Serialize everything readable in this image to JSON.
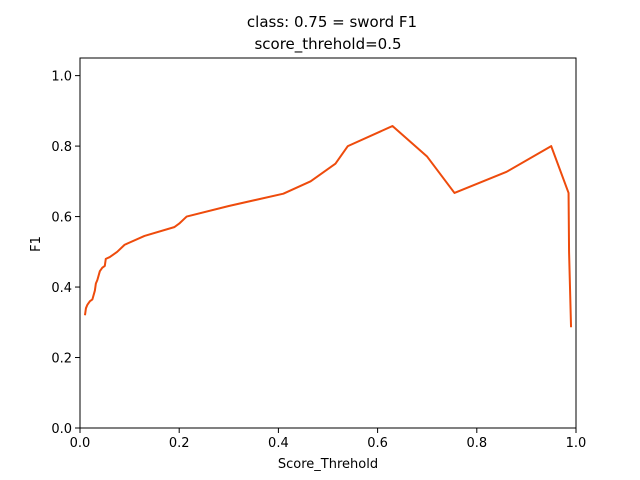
{
  "chart_data": {
    "type": "line",
    "title": "class: 0.75 = sword F1",
    "subtitle": "score_threhold=0.5",
    "xlabel": "Score_Threhold",
    "ylabel": "F1",
    "xlim": [
      0.0,
      1.0
    ],
    "ylim": [
      0.0,
      1.05
    ],
    "xticks": [
      0.0,
      0.2,
      0.4,
      0.6,
      0.8,
      1.0
    ],
    "xtick_labels": [
      "0.0",
      "0.2",
      "0.4",
      "0.6",
      "0.8",
      "1.0"
    ],
    "yticks": [
      0.0,
      0.2,
      0.4,
      0.6,
      0.8,
      1.0
    ],
    "ytick_labels": [
      "0.0",
      "0.2",
      "0.4",
      "0.6",
      "0.8",
      "1.0"
    ],
    "grid": false,
    "line_color": "#ee4b0c",
    "series": [
      {
        "x": [
          0.01,
          0.012,
          0.015,
          0.02,
          0.025,
          0.03,
          0.032,
          0.035,
          0.04,
          0.045,
          0.05,
          0.052,
          0.06,
          0.075,
          0.09,
          0.13,
          0.19,
          0.2,
          0.215,
          0.3,
          0.41,
          0.465,
          0.515,
          0.54,
          0.63,
          0.7,
          0.755,
          0.86,
          0.95,
          0.985,
          0.986,
          0.99
        ],
        "y": [
          0.32,
          0.34,
          0.35,
          0.36,
          0.365,
          0.39,
          0.41,
          0.42,
          0.445,
          0.455,
          0.46,
          0.48,
          0.485,
          0.5,
          0.52,
          0.545,
          0.57,
          0.58,
          0.6,
          0.63,
          0.665,
          0.7,
          0.75,
          0.8,
          0.857,
          0.77,
          0.667,
          0.727,
          0.8,
          0.667,
          0.5,
          0.286
        ]
      }
    ]
  }
}
